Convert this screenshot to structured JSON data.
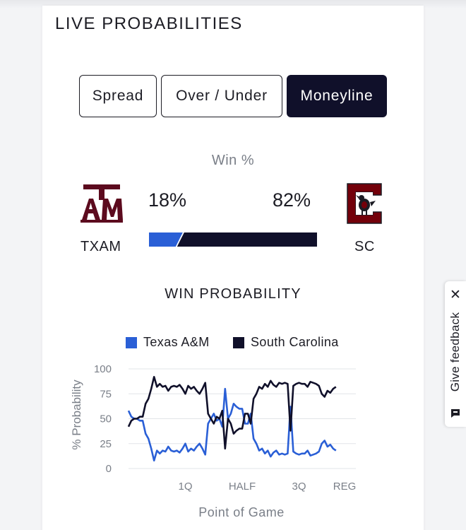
{
  "section": {
    "title": "LIVE PROBABILITIES"
  },
  "tabs": [
    {
      "label": "Spread",
      "active": false
    },
    {
      "label": "Over / Under",
      "active": false
    },
    {
      "label": "Moneyline",
      "active": true
    }
  ],
  "win": {
    "label": "Win %",
    "away": {
      "abbr": "TXAM",
      "pct": "18%",
      "value": 18,
      "color": "#2a5fd6",
      "logo_color": "#5c0a1e"
    },
    "home": {
      "abbr": "SC",
      "pct": "82%",
      "value": 82,
      "color": "#10102a",
      "logo_color": "#73000a"
    }
  },
  "chart_data": {
    "type": "line",
    "title": "WIN PROBABILITY",
    "xlabel": "Point of Game",
    "ylabel": "% Probability",
    "ylim": [
      0,
      100
    ],
    "yticks": [
      "100",
      "75",
      "50",
      "25",
      "0"
    ],
    "xticks": [
      "1Q",
      "HALF",
      "3Q",
      "REG"
    ],
    "x_range": [
      0,
      4
    ],
    "grid": true,
    "legend_placement": "top",
    "series": [
      {
        "name": "Texas A&M",
        "color": "#2a5fd6",
        "x": [
          0.0,
          0.05,
          0.1,
          0.15,
          0.2,
          0.25,
          0.3,
          0.35,
          0.4,
          0.45,
          0.5,
          0.55,
          0.6,
          0.65,
          0.7,
          0.75,
          0.8,
          0.85,
          0.9,
          0.95,
          1.0,
          1.05,
          1.1,
          1.15,
          1.2,
          1.25,
          1.3,
          1.35,
          1.4,
          1.45,
          1.5,
          1.55,
          1.6,
          1.65,
          1.7,
          1.75,
          1.8,
          1.85,
          1.9,
          1.95,
          2.0,
          2.05,
          2.1,
          2.15,
          2.2,
          2.25,
          2.3,
          2.35,
          2.4,
          2.45,
          2.5,
          2.55,
          2.6,
          2.65,
          2.7,
          2.75,
          2.8,
          2.85,
          2.9,
          2.95,
          3.0,
          3.05,
          3.1,
          3.15,
          3.2,
          3.25,
          3.3,
          3.35,
          3.4,
          3.45,
          3.5,
          3.55,
          3.6,
          3.65
        ],
        "values": [
          58,
          52,
          50,
          50,
          48,
          48,
          35,
          30,
          20,
          8,
          18,
          15,
          18,
          17,
          22,
          18,
          17,
          18,
          16,
          20,
          25,
          17,
          20,
          18,
          22,
          25,
          20,
          14,
          45,
          50,
          55,
          48,
          50,
          42,
          80,
          50,
          55,
          65,
          62,
          60,
          60,
          45,
          45,
          55,
          30,
          25,
          18,
          20,
          15,
          18,
          12,
          16,
          18,
          14,
          15,
          14,
          15,
          62,
          17,
          15,
          14,
          15,
          15,
          18,
          13,
          14,
          15,
          17,
          25,
          28,
          22,
          24,
          20,
          18
        ]
      },
      {
        "name": "South Carolina",
        "color": "#10102a",
        "x": [
          0.0,
          0.05,
          0.1,
          0.15,
          0.2,
          0.25,
          0.3,
          0.35,
          0.4,
          0.45,
          0.5,
          0.55,
          0.6,
          0.65,
          0.7,
          0.75,
          0.8,
          0.85,
          0.9,
          0.95,
          1.0,
          1.05,
          1.1,
          1.15,
          1.2,
          1.25,
          1.3,
          1.35,
          1.4,
          1.45,
          1.5,
          1.55,
          1.6,
          1.65,
          1.7,
          1.75,
          1.8,
          1.85,
          1.9,
          1.95,
          2.0,
          2.05,
          2.1,
          2.15,
          2.2,
          2.25,
          2.3,
          2.35,
          2.4,
          2.45,
          2.5,
          2.55,
          2.6,
          2.65,
          2.7,
          2.75,
          2.8,
          2.85,
          2.9,
          2.95,
          3.0,
          3.05,
          3.1,
          3.15,
          3.2,
          3.25,
          3.3,
          3.35,
          3.4,
          3.45,
          3.5,
          3.55,
          3.6,
          3.65
        ],
        "values": [
          42,
          48,
          50,
          50,
          52,
          52,
          65,
          70,
          80,
          92,
          82,
          85,
          82,
          83,
          78,
          82,
          83,
          82,
          84,
          80,
          75,
          83,
          80,
          82,
          78,
          75,
          80,
          86,
          55,
          50,
          45,
          52,
          50,
          58,
          20,
          50,
          45,
          35,
          38,
          40,
          40,
          55,
          55,
          45,
          70,
          75,
          82,
          80,
          85,
          82,
          88,
          84,
          82,
          86,
          85,
          86,
          85,
          38,
          83,
          85,
          86,
          85,
          85,
          82,
          87,
          86,
          85,
          83,
          75,
          72,
          78,
          76,
          80,
          82
        ]
      }
    ]
  },
  "feedback": {
    "label": "Give feedback",
    "close": "✕"
  }
}
